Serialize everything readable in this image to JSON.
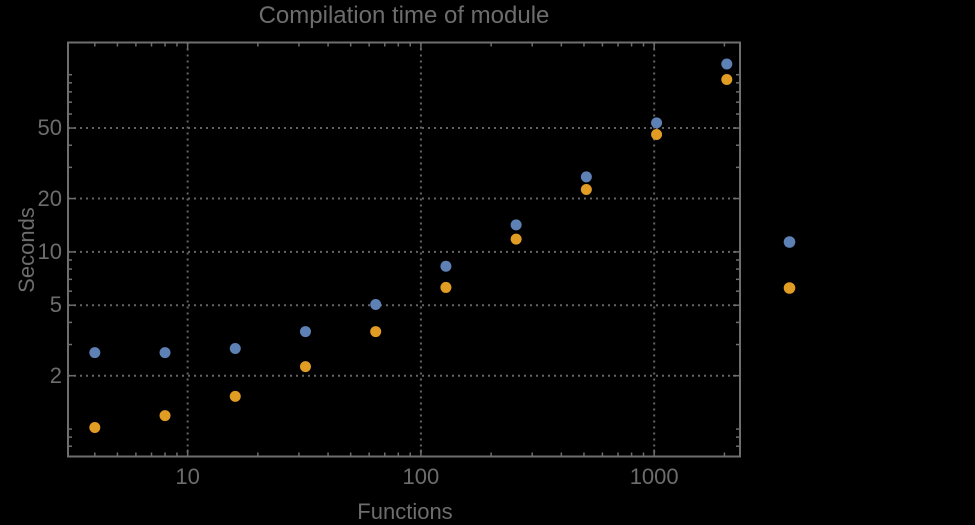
{
  "colors": {
    "background": "#000000",
    "text": "#6d6d6d",
    "grid": "#646464",
    "frame": "#6e6e6e",
    "series_blue": "#5E81B5",
    "series_orange": "#E19C24"
  },
  "chart_data": {
    "type": "scatter",
    "title": "Compilation time of module",
    "xlabel": "Functions",
    "ylabel": "Seconds",
    "x_scale": "log",
    "y_scale": "log",
    "xlim": [
      3.07,
      2333
    ],
    "ylim": [
      0.7,
      152
    ],
    "grid": "dotted lines at labeled major ticks",
    "legend_position": "right-of-frame (markers only, no visible text)",
    "x_major_ticks": [
      {
        "value": 10,
        "label": "10"
      },
      {
        "value": 100,
        "label": "100"
      },
      {
        "value": 1000,
        "label": "1000"
      }
    ],
    "y_major_ticks": [
      {
        "value": 2,
        "label": "2"
      },
      {
        "value": 5,
        "label": "5"
      },
      {
        "value": 10,
        "label": "10"
      },
      {
        "value": 20,
        "label": "20"
      },
      {
        "value": 50,
        "label": "50"
      }
    ],
    "x_minor_ticks": [
      4,
      5,
      6,
      7,
      8,
      9,
      20,
      30,
      40,
      50,
      60,
      70,
      80,
      90,
      200,
      300,
      400,
      500,
      600,
      700,
      800,
      900,
      2000
    ],
    "y_minor_ticks": [
      0.8,
      0.9,
      1,
      3,
      4,
      6,
      7,
      8,
      9,
      30,
      40,
      60,
      70,
      80,
      90,
      100
    ],
    "x": [
      4,
      8,
      16,
      32,
      64,
      128,
      256,
      512,
      1024,
      2048
    ],
    "series": [
      {
        "name": "series-blue",
        "color": "#5E81B5",
        "values": [
          2.7,
          2.7,
          2.85,
          3.55,
          5.05,
          8.3,
          14.2,
          26.5,
          53.5,
          115
        ]
      },
      {
        "name": "series-orange",
        "color": "#E19C24",
        "values": [
          1.02,
          1.19,
          1.53,
          2.25,
          3.55,
          6.3,
          11.8,
          22.5,
          46,
          94
        ]
      }
    ],
    "legend_markers": [
      {
        "name": "legend-marker-blue",
        "color": "#5E81B5"
      },
      {
        "name": "legend-marker-orange",
        "color": "#E19C24"
      }
    ]
  }
}
